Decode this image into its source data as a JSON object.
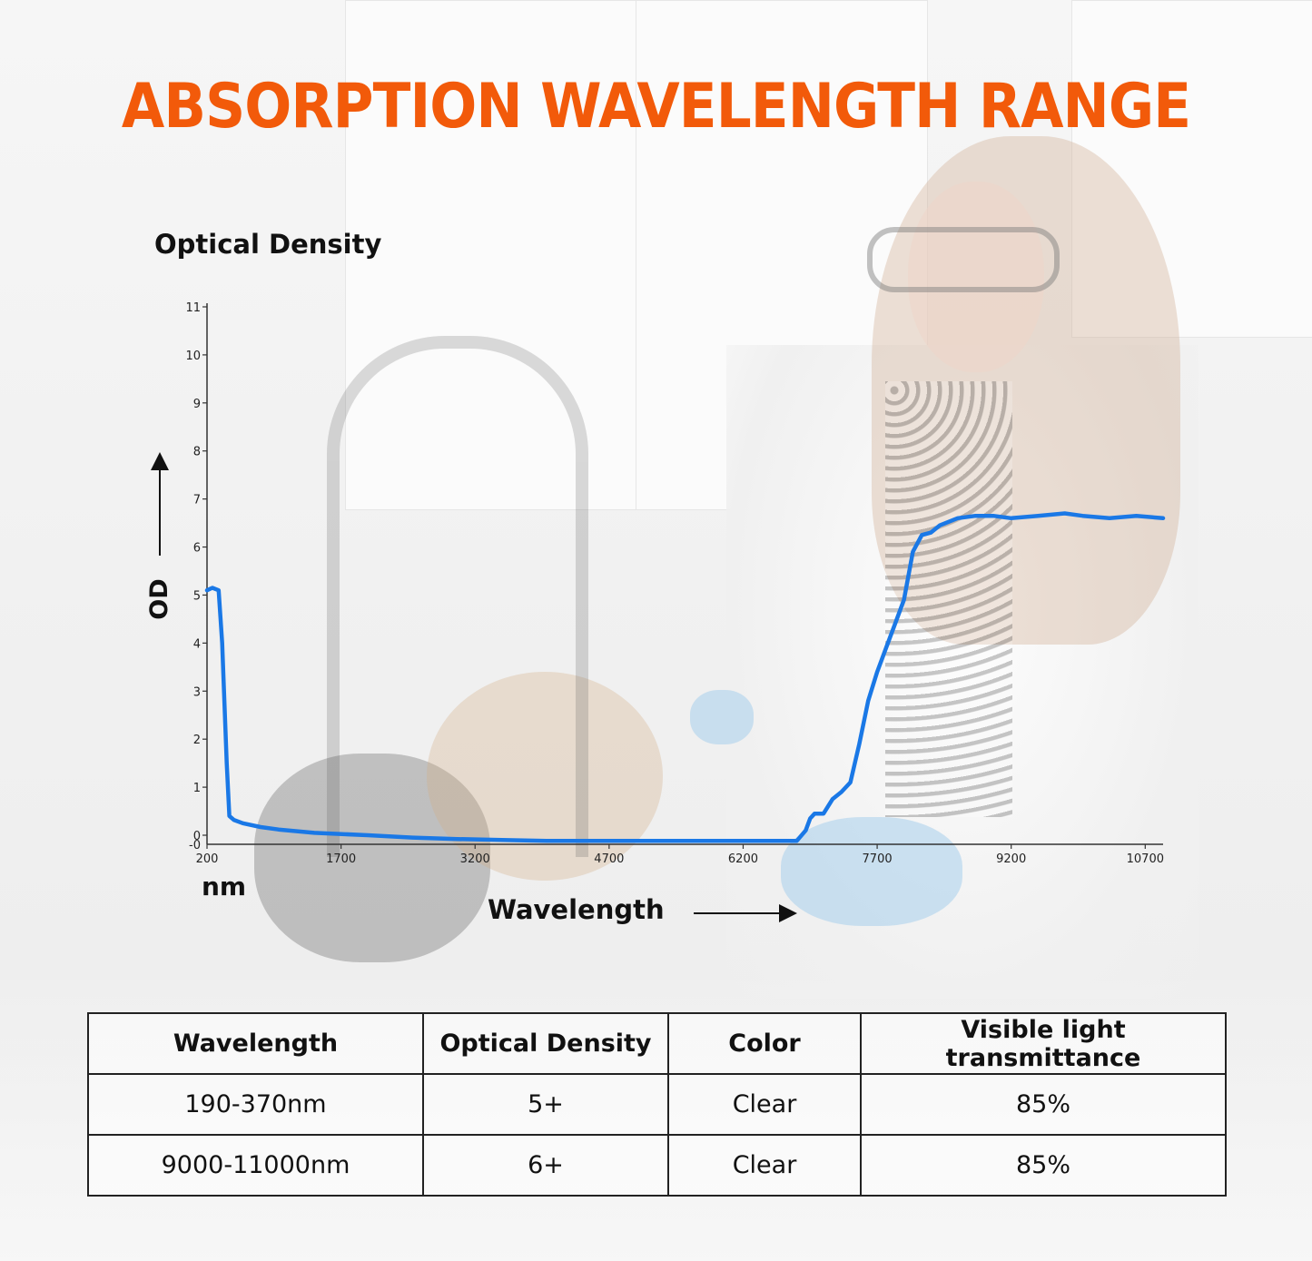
{
  "title": "ABSORPTION WAVELENGTH RANGE",
  "colors": {
    "title": "#f25a0a",
    "curve": "#1a78e6",
    "text": "#111111"
  },
  "chart_data": {
    "type": "line",
    "title": "ABSORPTION WAVELENGTH RANGE",
    "ylabel_title": "Optical Density",
    "ylabel": "OD",
    "xunit": "nm",
    "xlabel": "Wavelength",
    "xlim": [
      200,
      10900
    ],
    "ylim": [
      0,
      11
    ],
    "x_ticks": [
      200,
      1700,
      3200,
      4700,
      6200,
      7700,
      9200,
      10700
    ],
    "y_ticks": [
      0,
      1,
      2,
      3,
      4,
      5,
      6,
      7,
      8,
      9,
      10,
      11
    ],
    "grid": false,
    "legend": "none",
    "series": [
      {
        "x": [
          200,
          260,
          330,
          370,
          420,
          450,
          500,
          600,
          800,
          1000,
          1400,
          2000,
          2500,
          3000,
          3500,
          4000,
          4700,
          5500,
          6200,
          6800,
          6900,
          6950,
          7000,
          7100,
          7200,
          7300,
          7400,
          7500,
          7600,
          7700,
          7800,
          7900,
          8000,
          8100,
          8200,
          8300,
          8400,
          8600,
          8800,
          9000,
          9200,
          9500,
          9800,
          10000,
          10300,
          10600,
          10900
        ],
        "y": [
          5.1,
          5.15,
          5.1,
          4.0,
          1.5,
          0.4,
          0.32,
          0.25,
          0.17,
          0.12,
          0.05,
          0.0,
          -0.05,
          -0.08,
          -0.1,
          -0.12,
          -0.12,
          -0.12,
          -0.12,
          -0.12,
          0.1,
          0.35,
          0.45,
          0.45,
          0.75,
          0.9,
          1.1,
          1.9,
          2.8,
          3.4,
          3.9,
          4.4,
          4.9,
          5.9,
          6.25,
          6.3,
          6.45,
          6.6,
          6.65,
          6.65,
          6.6,
          6.65,
          6.7,
          6.65,
          6.6,
          6.65,
          6.6
        ]
      }
    ]
  },
  "table": {
    "headers": [
      "Wavelength",
      "Optical Density",
      "Color",
      "Visible light transmittance"
    ],
    "rows": [
      [
        "190-370nm",
        "5+",
        "Clear",
        "85%"
      ],
      [
        "9000-11000nm",
        "6+",
        "Clear",
        "85%"
      ]
    ]
  }
}
